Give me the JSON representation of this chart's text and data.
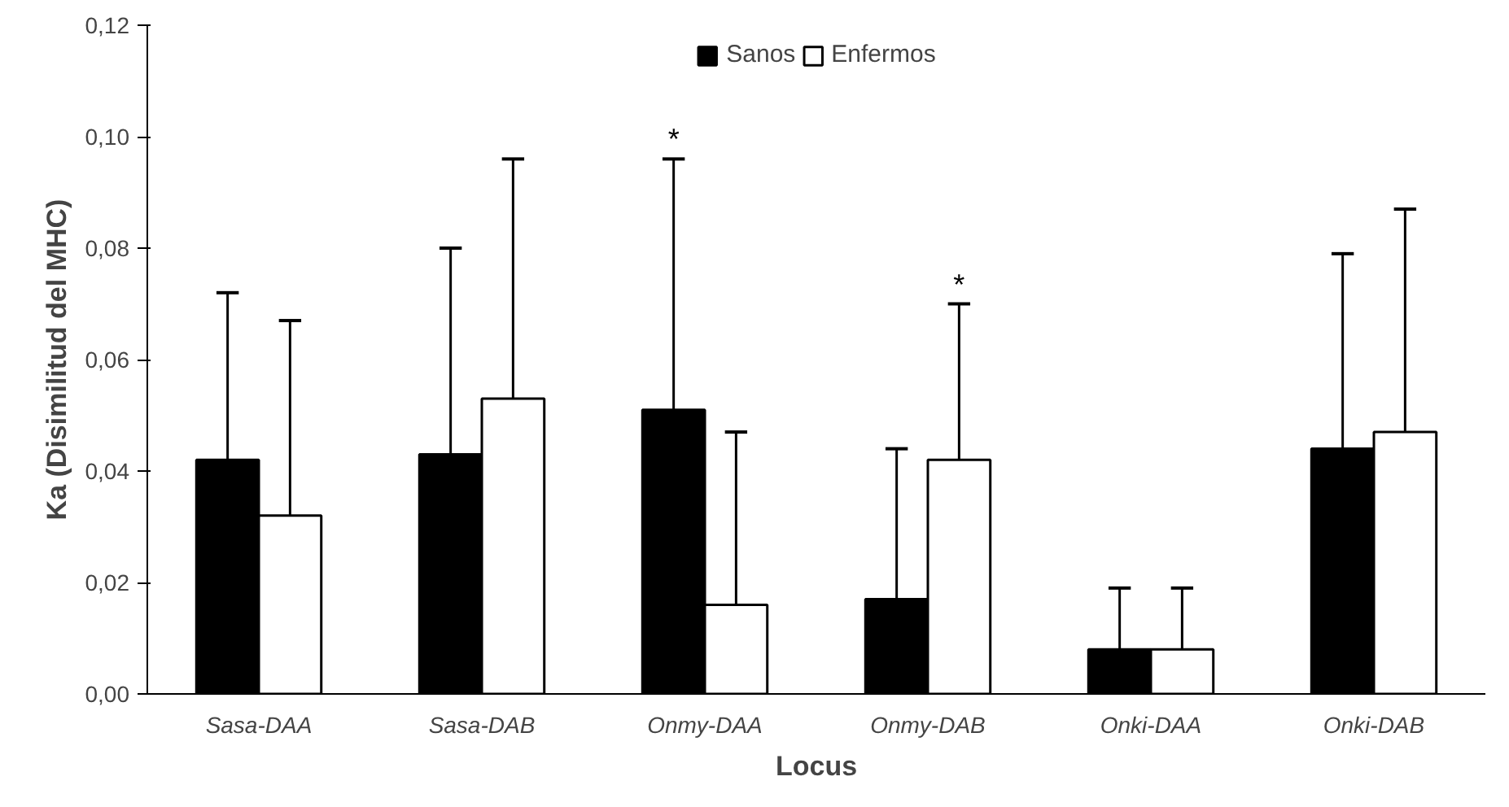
{
  "chart_data": {
    "type": "bar",
    "xlabel": "Locus",
    "ylabel": "Ka (Disimilitud del MHC)",
    "categories": [
      "Sasa-DAA",
      "Sasa-DAB",
      "Onmy-DAA",
      "Onmy-DAB",
      "Onki-DAA",
      "Onki-DAB"
    ],
    "series": [
      {
        "name": "Sanos",
        "color": "#000000",
        "values": [
          0.042,
          0.043,
          0.051,
          0.017,
          0.008,
          0.044
        ],
        "errors": [
          [
            0.042,
            0.072
          ],
          [
            0.043,
            0.08
          ],
          [
            0.051,
            0.096
          ],
          [
            0.017,
            0.044
          ],
          [
            0.008,
            0.019
          ],
          [
            0.044,
            0.079
          ]
        ]
      },
      {
        "name": "Enfermos",
        "color": "#ffffff",
        "values": [
          0.032,
          0.053,
          0.016,
          0.042,
          0.008,
          0.047
        ],
        "errors": [
          [
            0.032,
            0.067
          ],
          [
            0.053,
            0.096
          ],
          [
            0.016,
            0.047
          ],
          [
            0.042,
            0.07
          ],
          [
            0.008,
            0.019
          ],
          [
            0.047,
            0.087
          ]
        ]
      }
    ],
    "ylim": [
      0,
      0.12
    ],
    "yticks": [
      {
        "value": 0,
        "label": "0,00"
      },
      {
        "value": 0.02,
        "label": "0,02"
      },
      {
        "value": 0.04,
        "label": "0,04"
      },
      {
        "value": 0.06,
        "label": "0,06"
      },
      {
        "value": 0.08,
        "label": "0,08"
      },
      {
        "value": 0.1,
        "label": "0,10"
      },
      {
        "value": 0.12,
        "label": "0,12"
      }
    ],
    "annotations": [
      "*",
      "*"
    ],
    "grid": false,
    "legend": "top"
  }
}
